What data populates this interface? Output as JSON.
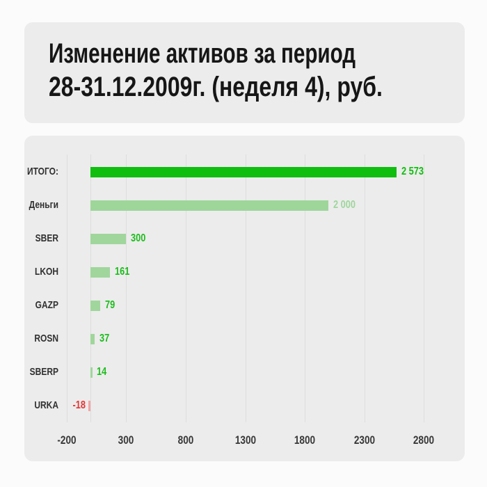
{
  "title": {
    "line1": "Изменение активов за период",
    "line2": "28-31.12.2009г. (неделя 4), руб."
  },
  "colors": {
    "background": "#fbfbfb",
    "card": "#ececec",
    "gridline": "#dddddd",
    "positive_bright": "#0fbe0f",
    "positive_pale": "#9ed69a",
    "negative_pale": "#f2a5a5",
    "negative_bright": "#e53535"
  },
  "chart_data": {
    "type": "bar",
    "orientation": "horizontal",
    "title": "Изменение активов за период 28-31.12.2009г. (неделя 4), руб.",
    "categories": [
      "ИТОГО:",
      "Деньги",
      "SBER",
      "LKOH",
      "GAZP",
      "ROSN",
      "SBERP",
      "URKA"
    ],
    "values": [
      2573,
      2000,
      300,
      161,
      79,
      37,
      14,
      -18
    ],
    "value_labels": [
      "2 573",
      "2 000",
      "300",
      "161",
      "79",
      "37",
      "14",
      "-18"
    ],
    "bar_colors": [
      "#0fbe0f",
      "#9ed69a",
      "#a0d69c",
      "#a0d69c",
      "#a0d69c",
      "#a0d69c",
      "#a0d69c",
      "#f2a5a5"
    ],
    "value_label_colors": [
      "#0fbe0f",
      "#9ed69a",
      "#1dbd1d",
      "#1dbd1d",
      "#1dbd1d",
      "#1dbd1d",
      "#1dbd1d",
      "#e53535"
    ],
    "x_ticks": [
      -200,
      300,
      800,
      1300,
      1800,
      2300,
      2800
    ],
    "x_tick_labels": [
      "-200",
      "300",
      "800",
      "1300",
      "1800",
      "2300",
      "2800"
    ],
    "xlim": [
      -555,
      3143
    ],
    "grid": true,
    "legend": false
  }
}
